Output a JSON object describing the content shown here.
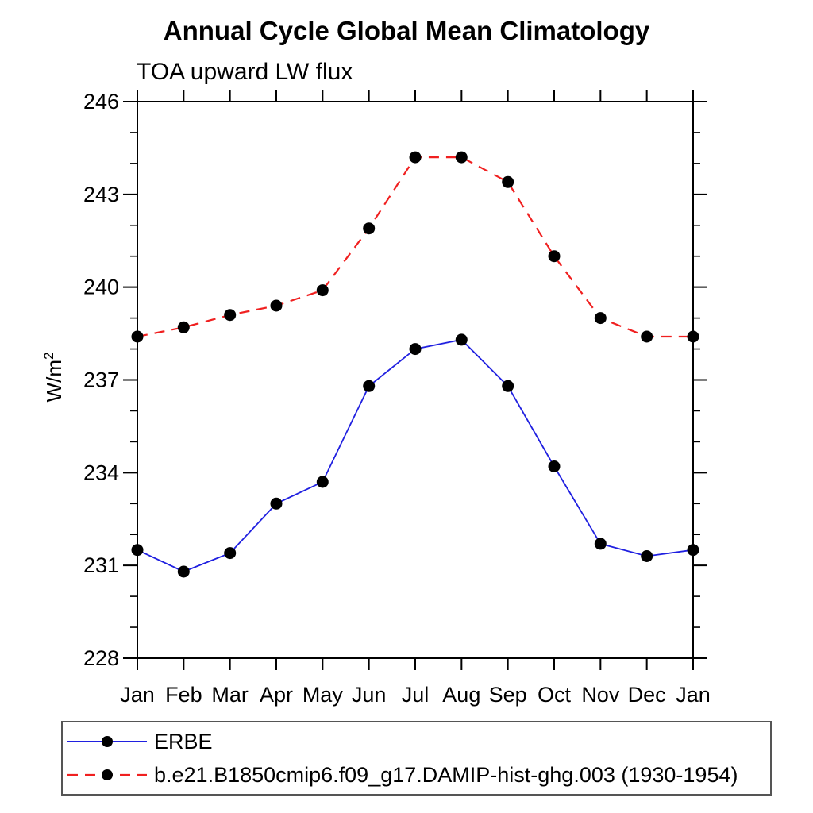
{
  "title": "Annual Cycle Global Mean Climatology",
  "subtitle": "TOA upward LW flux",
  "y_axis": {
    "label_base": "W/m",
    "label_exponent": "2",
    "tick_labels": [
      "228",
      "231",
      "234",
      "237",
      "240",
      "243",
      "246"
    ]
  },
  "chart_data": {
    "type": "line",
    "title": "Annual Cycle Global Mean Climatology",
    "subtitle": "TOA upward LW flux",
    "ylabel": "W/m^2",
    "xlabel": "",
    "x_categories": [
      "Jan",
      "Feb",
      "Mar",
      "Apr",
      "May",
      "Jun",
      "Jul",
      "Aug",
      "Sep",
      "Oct",
      "Nov",
      "Dec",
      "Jan"
    ],
    "ylim": [
      228,
      246
    ],
    "ytick_major": [
      228,
      231,
      234,
      237,
      240,
      243,
      246
    ],
    "ytick_minor_step": 1,
    "grid": false,
    "legend_position": "bottom-left-box",
    "frame_color": "#000000",
    "series": [
      {
        "name": "ERBE",
        "color": "#2020e0",
        "line_style": "solid",
        "marker": "filled-circle",
        "marker_color": "#000000",
        "values": [
          231.5,
          230.8,
          231.4,
          233.0,
          233.7,
          236.8,
          238.0,
          238.3,
          236.8,
          234.2,
          231.7,
          231.3,
          231.5
        ]
      },
      {
        "name": "b.e21.B1850cmip6.f09_g17.DAMIP-hist-ghg.003 (1930-1954)",
        "color": "#f02020",
        "line_style": "dashed",
        "marker": "filled-circle",
        "marker_color": "#000000",
        "values": [
          238.4,
          238.7,
          239.1,
          239.4,
          239.9,
          241.9,
          244.2,
          244.2,
          243.4,
          241.0,
          239.0,
          238.4,
          238.4
        ]
      }
    ]
  }
}
